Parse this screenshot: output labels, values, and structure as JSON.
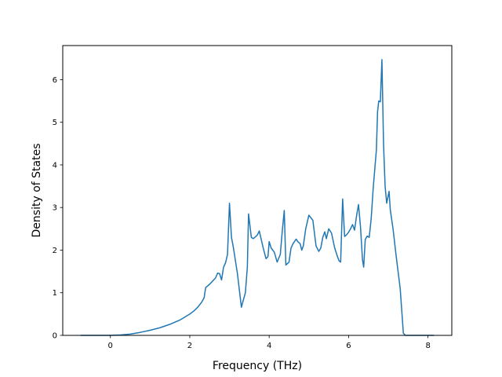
{
  "chart_data": {
    "type": "line",
    "title": "",
    "xlabel": "Frequency (THz)",
    "ylabel": "Density of States",
    "xlim": [
      -1.2,
      8.6
    ],
    "ylim": [
      0,
      6.8
    ],
    "xticks": [
      0,
      2,
      4,
      6,
      8
    ],
    "xtick_labels": [
      "0",
      "2",
      "4",
      "6",
      "8"
    ],
    "yticks": [
      0,
      1,
      2,
      3,
      4,
      5,
      6
    ],
    "ytick_labels": [
      "0",
      "1",
      "2",
      "3",
      "4",
      "5",
      "6"
    ],
    "grid": false,
    "legend": "none",
    "line_color": "#1f77b4",
    "series": [
      {
        "x": [
          -0.75,
          -0.5,
          -0.25,
          0.0,
          0.25,
          0.5,
          0.75,
          1.0,
          1.25,
          1.5,
          1.75,
          2.0,
          2.1,
          2.2,
          2.3,
          2.36,
          2.4,
          2.5,
          2.6,
          2.65,
          2.7,
          2.75,
          2.8,
          2.85,
          2.9,
          2.95,
          3.0,
          3.05,
          3.1,
          3.2,
          3.3,
          3.4,
          3.45,
          3.48,
          3.55,
          3.6,
          3.7,
          3.75,
          3.85,
          3.92,
          3.97,
          4.0,
          4.05,
          4.13,
          4.2,
          4.28,
          4.33,
          4.38,
          4.42,
          4.5,
          4.55,
          4.6,
          4.68,
          4.72,
          4.78,
          4.82,
          4.86,
          4.92,
          5.0,
          5.1,
          5.18,
          5.25,
          5.3,
          5.35,
          5.4,
          5.44,
          5.5,
          5.57,
          5.65,
          5.72,
          5.76,
          5.8,
          5.85,
          5.9,
          5.95,
          6.0,
          6.05,
          6.1,
          6.15,
          6.2,
          6.25,
          6.3,
          6.35,
          6.38,
          6.42,
          6.47,
          6.52,
          6.57,
          6.62,
          6.7,
          6.73,
          6.76,
          6.8,
          6.84,
          6.86,
          6.88,
          6.92,
          6.96,
          7.02,
          7.05,
          7.12,
          7.2,
          7.3,
          7.38,
          7.43,
          7.6,
          7.8,
          8.0,
          8.15
        ],
        "y": [
          0.0,
          0.0,
          0.0,
          0.0,
          0.01,
          0.03,
          0.07,
          0.12,
          0.18,
          0.26,
          0.36,
          0.5,
          0.57,
          0.66,
          0.78,
          0.88,
          1.12,
          1.2,
          1.3,
          1.35,
          1.46,
          1.45,
          1.3,
          1.6,
          1.7,
          1.9,
          3.1,
          2.3,
          2.05,
          1.45,
          0.66,
          1.0,
          1.6,
          2.85,
          2.3,
          2.27,
          2.35,
          2.45,
          2.05,
          1.8,
          1.85,
          2.2,
          2.05,
          1.95,
          1.72,
          1.9,
          2.45,
          2.93,
          1.65,
          1.72,
          2.05,
          2.15,
          2.26,
          2.2,
          2.15,
          2.0,
          2.1,
          2.5,
          2.82,
          2.7,
          2.1,
          1.97,
          2.05,
          2.3,
          2.43,
          2.27,
          2.5,
          2.4,
          2.05,
          1.85,
          1.75,
          1.72,
          3.2,
          2.32,
          2.36,
          2.42,
          2.5,
          2.6,
          2.47,
          2.8,
          3.07,
          2.55,
          1.78,
          1.6,
          2.25,
          2.33,
          2.3,
          2.75,
          3.45,
          4.35,
          5.25,
          5.5,
          5.48,
          6.47,
          5.5,
          4.5,
          3.5,
          3.1,
          3.38,
          2.95,
          2.5,
          1.85,
          1.1,
          0.05,
          0.0,
          0.0,
          0.0,
          0.0,
          0.0
        ]
      }
    ]
  }
}
